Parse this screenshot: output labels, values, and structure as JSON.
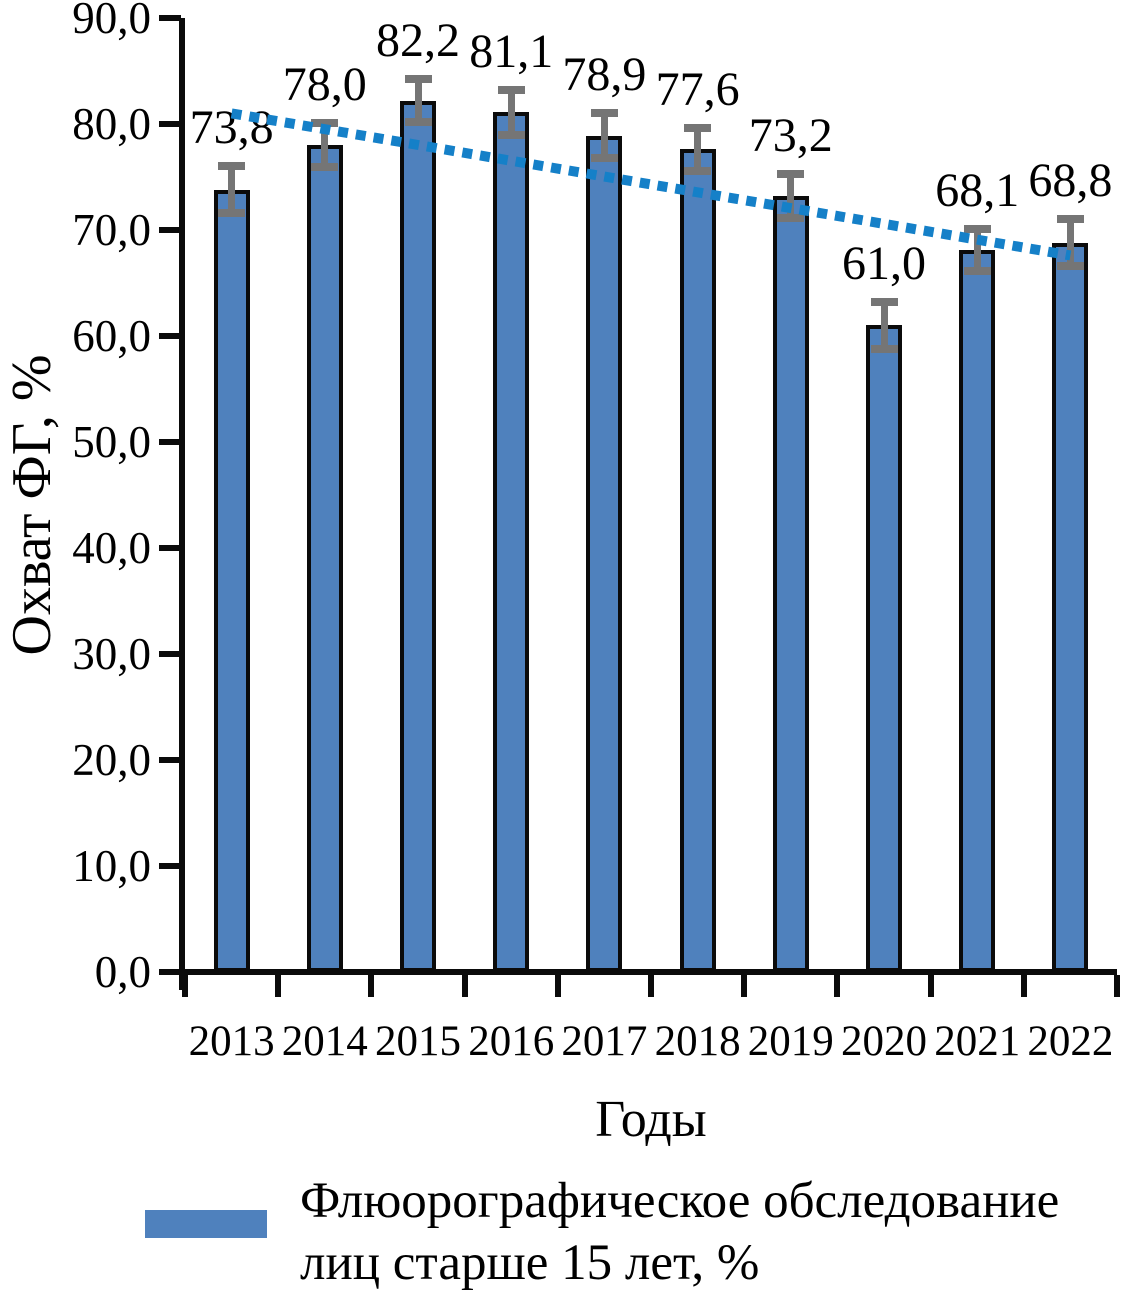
{
  "chart_data": {
    "type": "bar",
    "title": "",
    "xlabel": "Годы",
    "ylabel": "Охват ФГ, %",
    "categories": [
      "2013",
      "2014",
      "2015",
      "2016",
      "2017",
      "2018",
      "2019",
      "2020",
      "2021",
      "2022"
    ],
    "values": [
      73.8,
      78.0,
      82.2,
      81.1,
      78.9,
      77.6,
      73.2,
      61.0,
      68.1,
      68.8
    ],
    "value_labels": [
      "73,8",
      "78,0",
      "82,2",
      "81,1",
      "78,9",
      "77,6",
      "73,2",
      "61,0",
      "68,1",
      "68,8"
    ],
    "error_bars": [
      2.2,
      2.1,
      2.0,
      2.1,
      2.1,
      2.0,
      2.1,
      2.2,
      2.0,
      2.2
    ],
    "ylim": [
      0,
      90
    ],
    "ytick_step": 10,
    "ytick_labels": [
      "0,0",
      "10,0",
      "20,0",
      "30,0",
      "40,0",
      "50,0",
      "60,0",
      "70,0",
      "80,0",
      "90,0"
    ],
    "grid": false,
    "trendline": {
      "style": "dotted",
      "start": {
        "category": "2013",
        "value": 81.0
      },
      "end": {
        "category": "2022",
        "value": 67.6
      }
    },
    "legend": {
      "position": "bottom",
      "entries": [
        {
          "label_line1": "Флюорографическое обследование",
          "label_line2": "лиц старше 15 лет, %"
        }
      ]
    },
    "colors": {
      "bar_fill": "#4F81BD",
      "bar_border": "#0b0b0b",
      "error_bar": "#757575",
      "trendline": "#1580C8",
      "axis": "#0b0b0b",
      "text": "#000000"
    }
  }
}
